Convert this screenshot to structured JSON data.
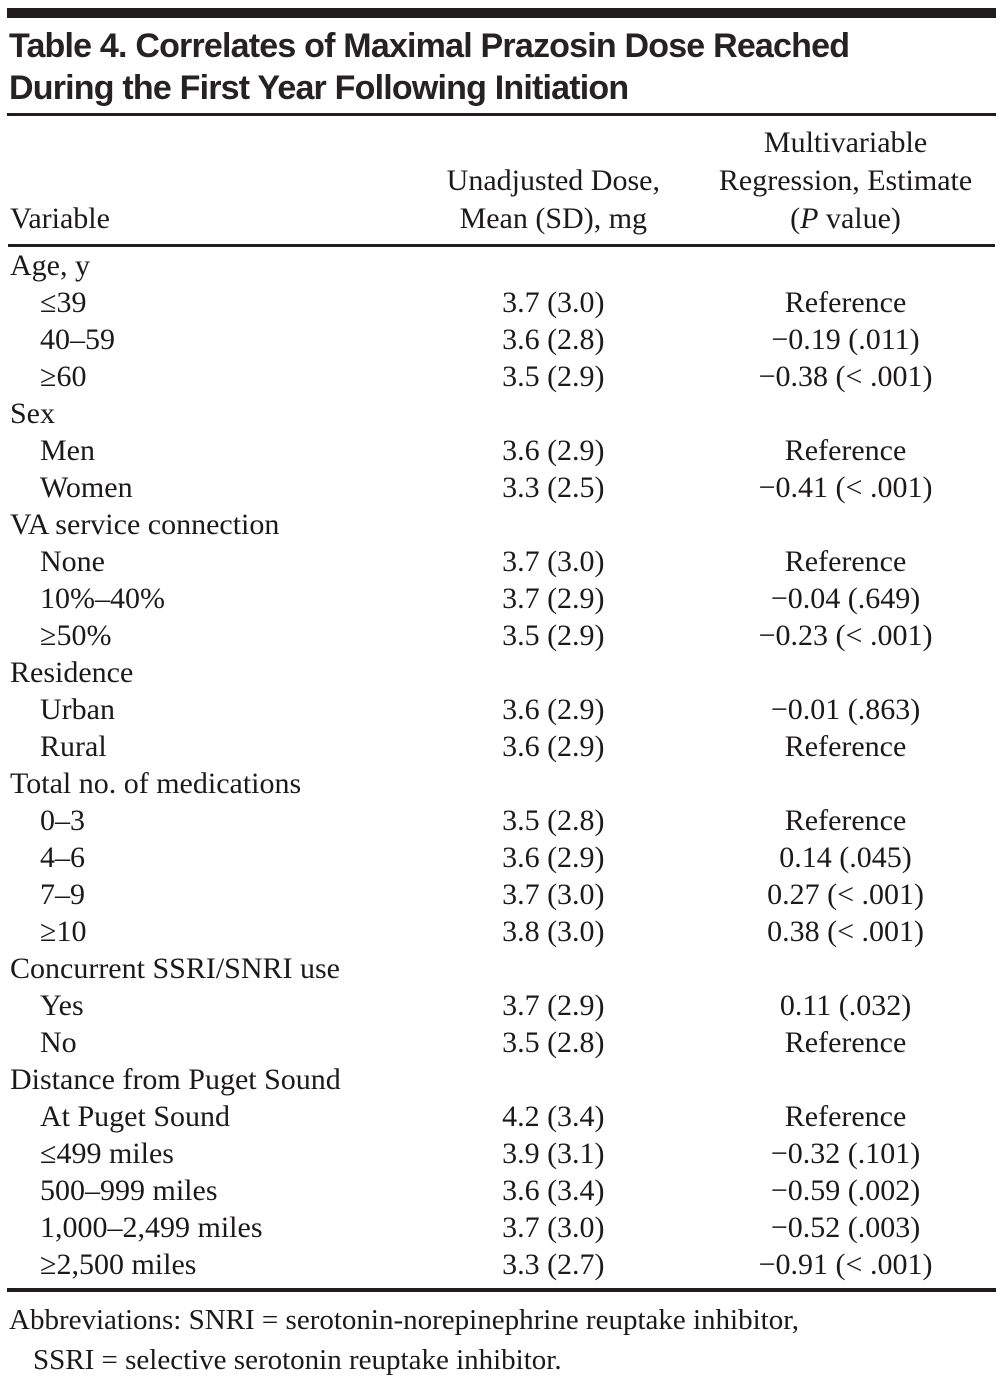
{
  "title": {
    "line1": "Table 4. Correlates of Maximal Prazosin Dose Reached",
    "line2": "During the First Year Following Initiation"
  },
  "table": {
    "header": {
      "col1": "Variable",
      "col2_line1": "Unadjusted Dose,",
      "col2_line2": "Mean (SD), mg",
      "col3_line1": "Multivariable",
      "col3_line2": "Regression, Estimate",
      "col3_pvalue": {
        "open": "(",
        "p": "P",
        "rest": " value)"
      }
    },
    "rows": [
      {
        "label": "Age, y",
        "indent": false,
        "dose": "",
        "estimate": ""
      },
      {
        "label": "≤39",
        "indent": true,
        "dose": "3.7 (3.0)",
        "estimate": "Reference"
      },
      {
        "label": "40–59",
        "indent": true,
        "dose": "3.6 (2.8)",
        "estimate": "−0.19 (.011)"
      },
      {
        "label": "≥60",
        "indent": true,
        "dose": "3.5 (2.9)",
        "estimate": "−0.38 (< .001)"
      },
      {
        "label": "Sex",
        "indent": false,
        "dose": "",
        "estimate": ""
      },
      {
        "label": "Men",
        "indent": true,
        "dose": "3.6 (2.9)",
        "estimate": "Reference"
      },
      {
        "label": "Women",
        "indent": true,
        "dose": "3.3 (2.5)",
        "estimate": "−0.41 (< .001)"
      },
      {
        "label": "VA service connection",
        "indent": false,
        "dose": "",
        "estimate": ""
      },
      {
        "label": "None",
        "indent": true,
        "dose": "3.7 (3.0)",
        "estimate": "Reference"
      },
      {
        "label": "10%–40%",
        "indent": true,
        "dose": "3.7 (2.9)",
        "estimate": "−0.04 (.649)"
      },
      {
        "label": "≥50%",
        "indent": true,
        "dose": "3.5 (2.9)",
        "estimate": "−0.23 (< .001)"
      },
      {
        "label": "Residence",
        "indent": false,
        "dose": "",
        "estimate": ""
      },
      {
        "label": "Urban",
        "indent": true,
        "dose": "3.6 (2.9)",
        "estimate": "−0.01 (.863)"
      },
      {
        "label": "Rural",
        "indent": true,
        "dose": "3.6 (2.9)",
        "estimate": "Reference"
      },
      {
        "label": "Total no. of medications",
        "indent": false,
        "dose": "",
        "estimate": ""
      },
      {
        "label": "0–3",
        "indent": true,
        "dose": "3.5 (2.8)",
        "estimate": "Reference"
      },
      {
        "label": "4–6",
        "indent": true,
        "dose": "3.6 (2.9)",
        "estimate": "0.14 (.045)"
      },
      {
        "label": "7–9",
        "indent": true,
        "dose": "3.7 (3.0)",
        "estimate": "0.27 (< .001)"
      },
      {
        "label": "≥10",
        "indent": true,
        "dose": "3.8 (3.0)",
        "estimate": "0.38 (< .001)"
      },
      {
        "label": "Concurrent SSRI/SNRI use",
        "indent": false,
        "dose": "",
        "estimate": ""
      },
      {
        "label": "Yes",
        "indent": true,
        "dose": "3.7 (2.9)",
        "estimate": "0.11 (.032)"
      },
      {
        "label": "No",
        "indent": true,
        "dose": "3.5 (2.8)",
        "estimate": "Reference"
      },
      {
        "label": "Distance from Puget Sound",
        "indent": false,
        "dose": "",
        "estimate": ""
      },
      {
        "label": "At Puget Sound",
        "indent": true,
        "dose": "4.2 (3.4)",
        "estimate": "Reference"
      },
      {
        "label": "≤499 miles",
        "indent": true,
        "dose": "3.9 (3.1)",
        "estimate": "−0.32 (.101)"
      },
      {
        "label": "500–999 miles",
        "indent": true,
        "dose": "3.6 (3.4)",
        "estimate": "−0.59 (.002)"
      },
      {
        "label": "1,000–2,499 miles",
        "indent": true,
        "dose": "3.7 (3.0)",
        "estimate": "−0.52 (.003)"
      },
      {
        "label": "≥2,500 miles",
        "indent": true,
        "dose": "3.3 (2.7)",
        "estimate": "−0.91 (< .001)"
      }
    ]
  },
  "footnotes": {
    "line1": "Abbreviations: SNRI = serotonin-norepinephrine reuptake inhibitor,",
    "line2": "SSRI = selective serotonin reuptake inhibitor."
  },
  "colors": {
    "text": "#1c1919",
    "rule": "#211d1e",
    "background": "#ffffff"
  }
}
